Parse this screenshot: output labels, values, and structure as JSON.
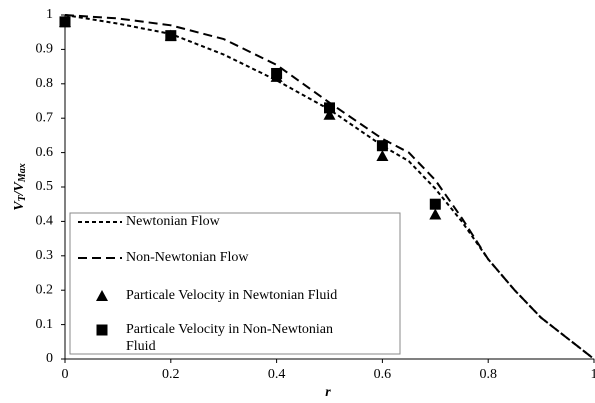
{
  "chart_data": {
    "type": "line",
    "xlabel": "r",
    "ylabel": [
      "V",
      "T",
      "/V",
      "Max"
    ],
    "xlim": [
      0,
      1
    ],
    "ylim": [
      0,
      1
    ],
    "xticks": [
      0,
      0.2,
      0.4,
      0.6,
      0.8,
      1
    ],
    "yticks": [
      0,
      0.1,
      0.2,
      0.3,
      0.4,
      0.5,
      0.6,
      0.7,
      0.8,
      0.9,
      1
    ],
    "grid": false,
    "legend": "lower left",
    "series": [
      {
        "name": "Newtonian Flow",
        "kind": "line",
        "dash": "short",
        "color": "#000000",
        "x": [
          0,
          0.1,
          0.2,
          0.3,
          0.4,
          0.5,
          0.6,
          0.65,
          0.7,
          0.75,
          0.8,
          0.85,
          0.9,
          0.95,
          1
        ],
        "values": [
          1.0,
          0.975,
          0.945,
          0.885,
          0.81,
          0.725,
          0.62,
          0.575,
          0.495,
          0.4,
          0.29,
          0.2,
          0.12,
          0.06,
          0
        ]
      },
      {
        "name": "Non-Newtonian Flow",
        "kind": "line",
        "dash": "long",
        "color": "#000000",
        "x": [
          0,
          0.1,
          0.2,
          0.3,
          0.4,
          0.5,
          0.6,
          0.65,
          0.7,
          0.75,
          0.8,
          0.85,
          0.9,
          0.95,
          1
        ],
        "values": [
          1.0,
          0.99,
          0.97,
          0.93,
          0.855,
          0.745,
          0.64,
          0.6,
          0.52,
          0.41,
          0.29,
          0.2,
          0.12,
          0.06,
          0
        ]
      },
      {
        "name": "Particale Velocity in Newtonian Fluid",
        "kind": "scatter",
        "marker": "triangle",
        "color": "#000000",
        "x": [
          0,
          0.2,
          0.4,
          0.5,
          0.6,
          0.7
        ],
        "values": [
          0.98,
          0.94,
          0.82,
          0.71,
          0.59,
          0.42
        ]
      },
      {
        "name": "Particale Velocity in Non-Newtonian Fluid",
        "kind": "scatter",
        "marker": "square",
        "color": "#000000",
        "x": [
          0,
          0.2,
          0.4,
          0.5,
          0.6,
          0.7
        ],
        "values": [
          0.98,
          0.94,
          0.83,
          0.73,
          0.62,
          0.45
        ]
      }
    ]
  }
}
